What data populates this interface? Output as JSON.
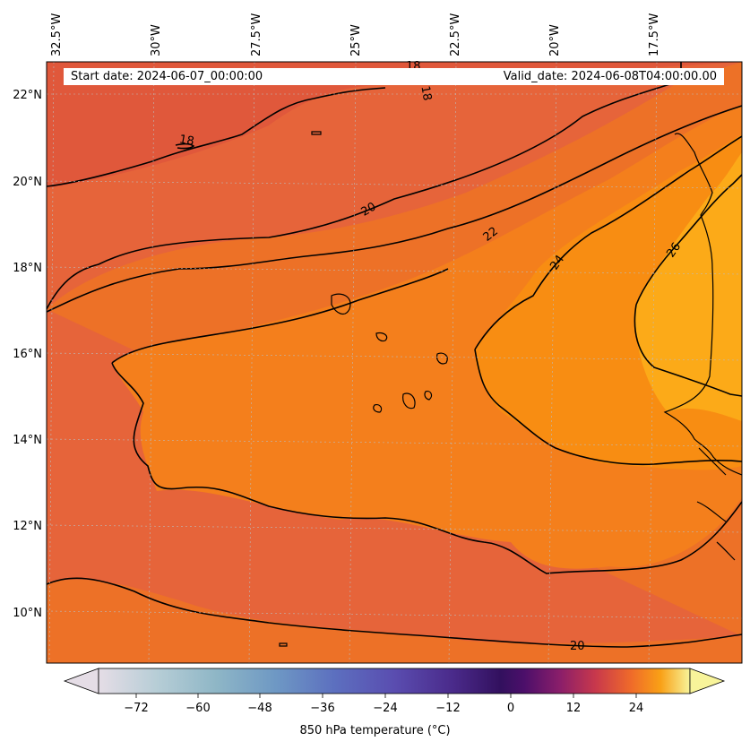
{
  "header": {
    "start_date": "Start date: 2024-06-07_00:00:00",
    "valid_date": "Valid_date: 2024-06-08T04:00:00.00"
  },
  "map": {
    "lon_labels": [
      "32.5°W",
      "30°W",
      "27.5°W",
      "25°W",
      "22.5°W",
      "20°W",
      "17.5°W"
    ],
    "lat_labels": [
      "22°N",
      "20°N",
      "18°N",
      "16°N",
      "14°N",
      "12°N",
      "10°N"
    ],
    "contour_labels": [
      "18",
      "18",
      "18",
      "20",
      "22",
      "24",
      "26",
      "20"
    ],
    "colors": {
      "band_lt18": "#e0583b",
      "band_18_20": "#e6643a",
      "band_20_22": "#ed7127",
      "band_22_24": "#f47f1c",
      "band_24_26": "#f88d12",
      "band_gt26": "#fcaa18"
    }
  },
  "colorbar": {
    "label": "850 hPa temperature ($^\\circ$C)",
    "display_label": "850 hPa temperature (°C)",
    "ticks": [
      "−72",
      "−60",
      "−48",
      "−36",
      "−24",
      "−12",
      "0",
      "12",
      "24"
    ],
    "vmin": -84,
    "vmax": 33,
    "colormap": "inferno_r-like"
  }
}
